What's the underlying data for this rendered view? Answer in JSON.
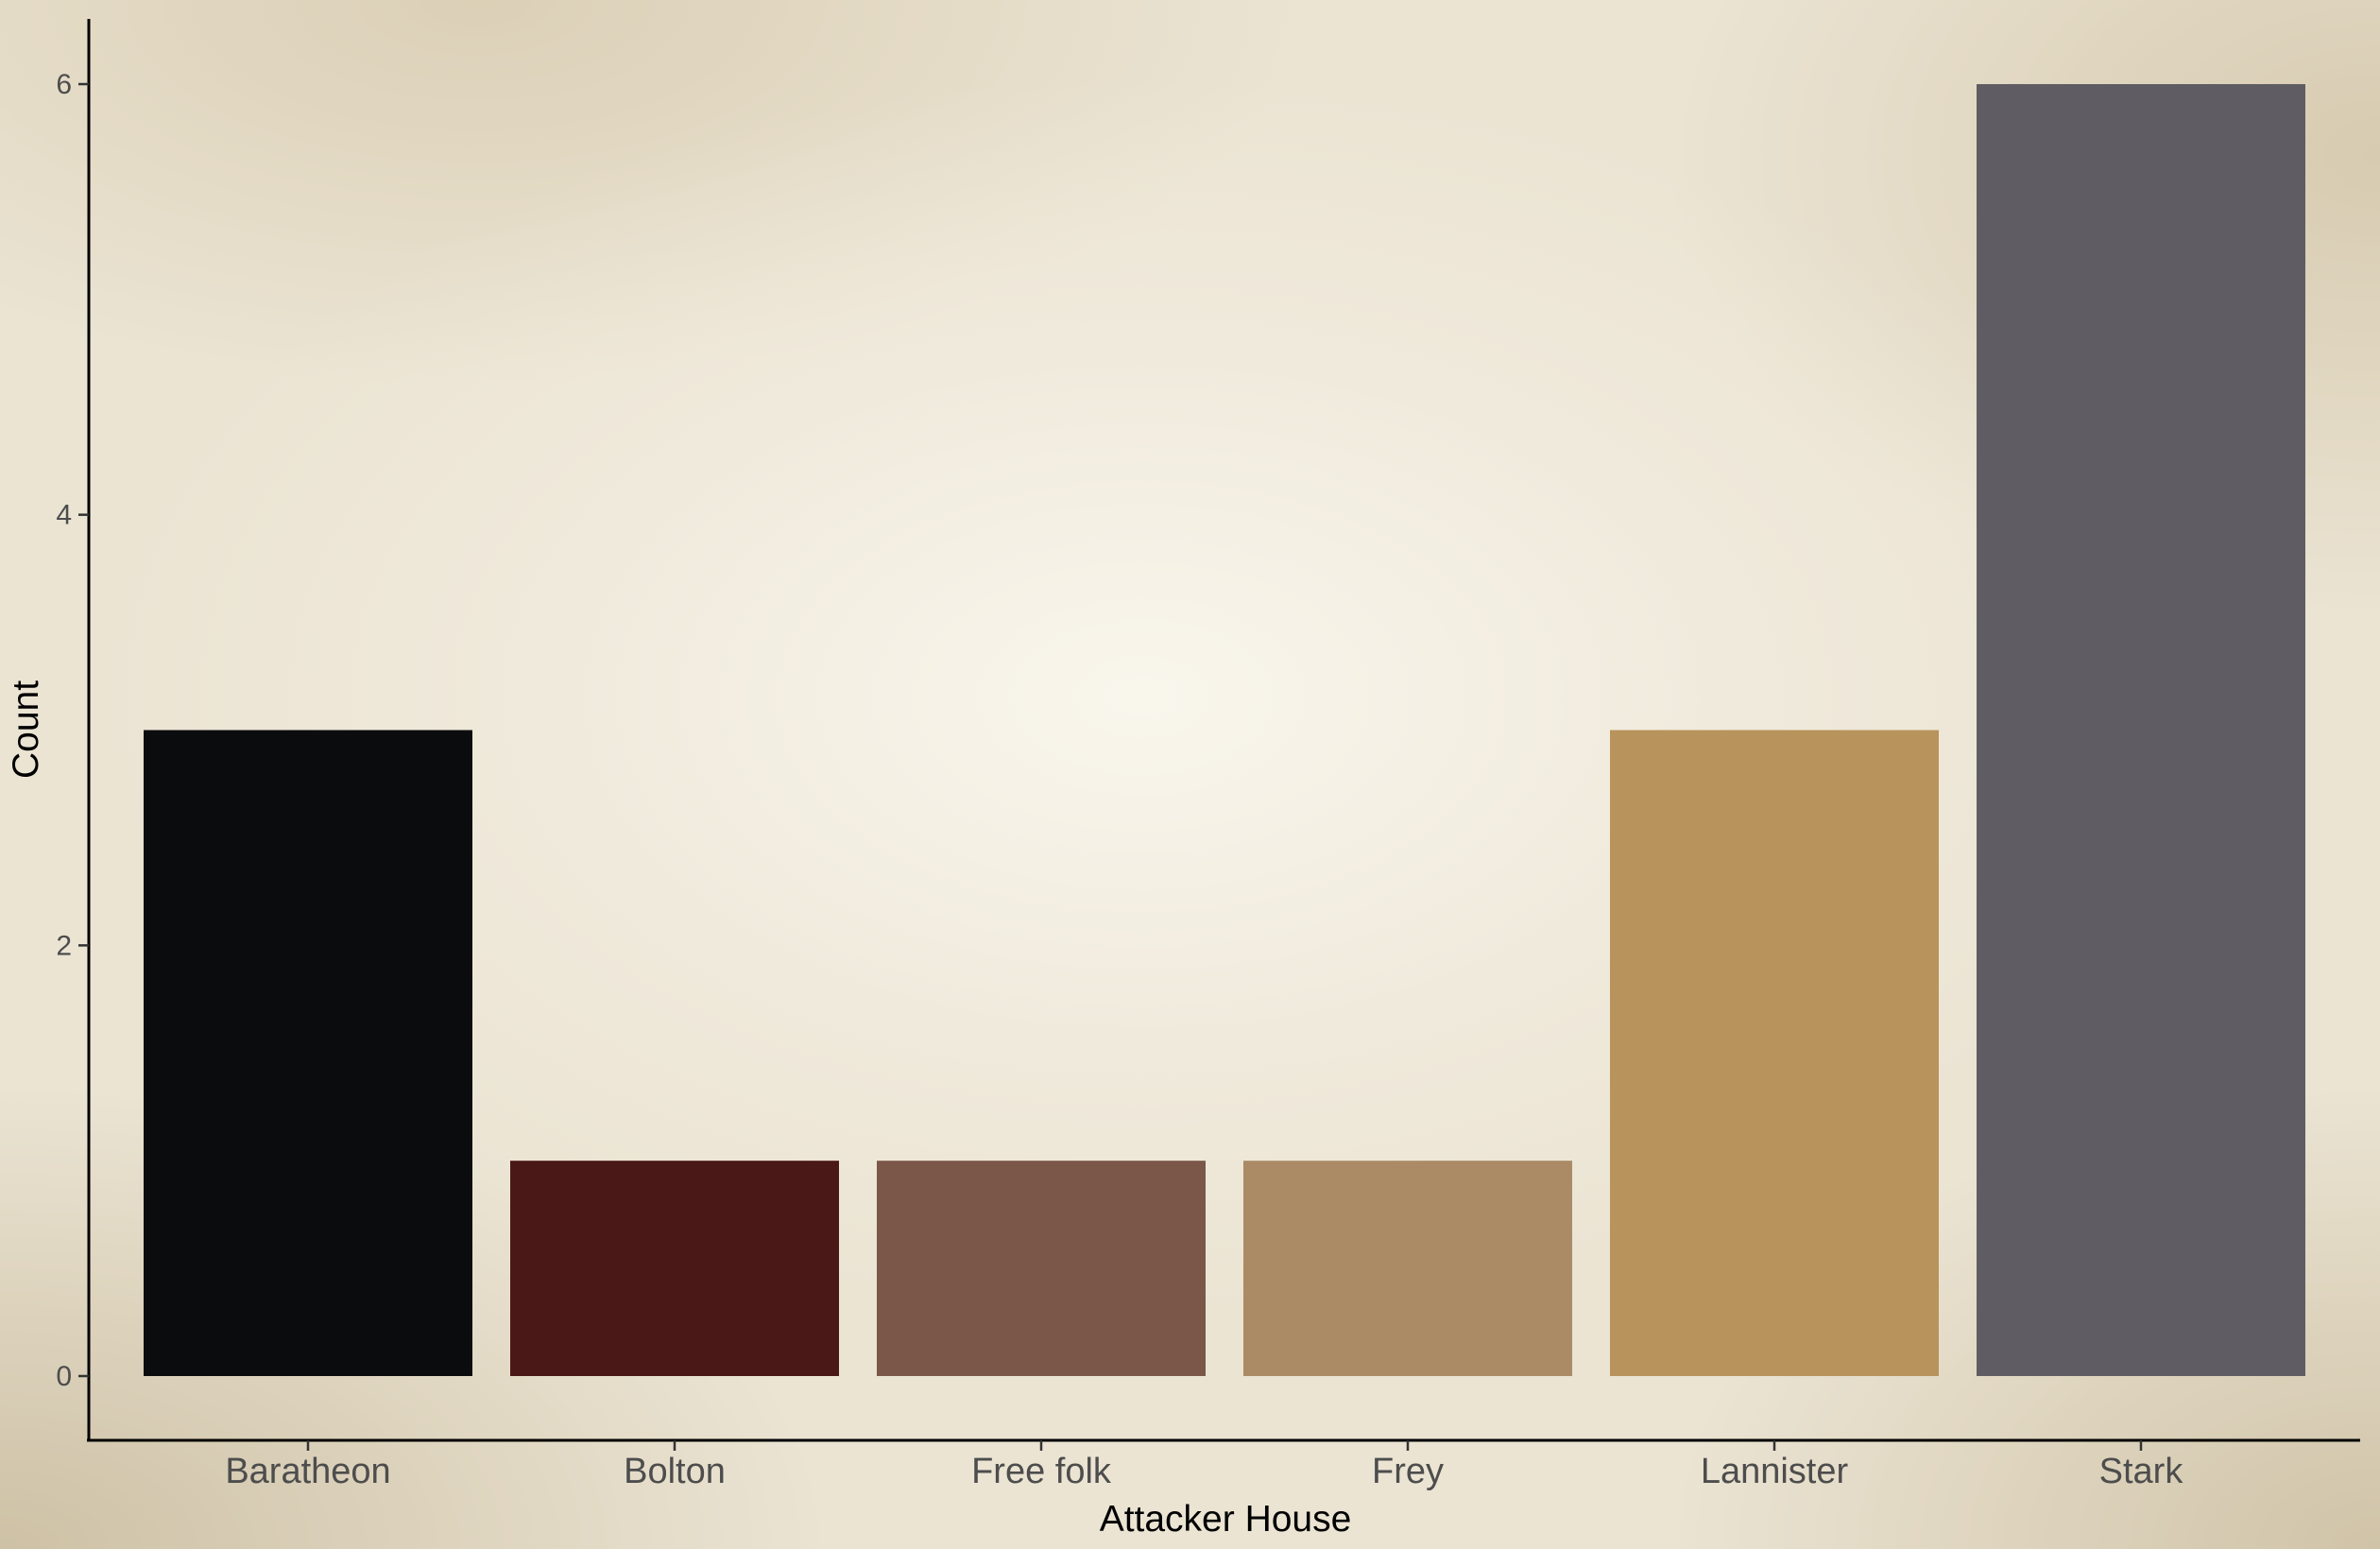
{
  "chart_data": {
    "type": "bar",
    "xlabel": "Attacker House",
    "ylabel": "Count",
    "categories": [
      "Baratheon",
      "Bolton",
      "Free folk",
      "Frey",
      "Lannister",
      "Stark"
    ],
    "values": [
      3,
      1,
      1,
      1,
      3,
      6
    ],
    "colors": [
      "#0b0c0e",
      "#4a1917",
      "#7a5749",
      "#aa8b66",
      "#b9935c",
      "#5f5d63"
    ],
    "ylim": [
      0,
      6
    ],
    "yticks": [
      "0",
      "2",
      "4",
      "6"
    ],
    "grid": false,
    "legend": "none",
    "background": "parchment texture"
  }
}
